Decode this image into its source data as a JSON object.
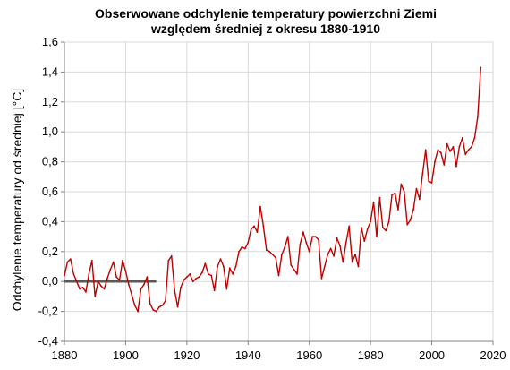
{
  "chart_data": {
    "type": "line",
    "title_lines": [
      "Obserwowane odchylenie temperatury powierzchni Ziemi",
      "względem średniej z okresu 1880-1910"
    ],
    "xlabel": "",
    "ylabel": "Odchylenie temperatury od średniej [°C]",
    "xlim": [
      1880,
      2020
    ],
    "ylim": [
      -0.4,
      1.6
    ],
    "x_ticks": [
      "1880",
      "1900",
      "1920",
      "1940",
      "1960",
      "1980",
      "2000",
      "2020"
    ],
    "y_ticks": [
      "1,6",
      "1,4",
      "1,2",
      "1,0",
      "0,8",
      "0,6",
      "0,4",
      "0,2",
      "0,0",
      "-0,2",
      "-0,4"
    ],
    "grid": true,
    "legend": "none",
    "colors": {
      "series": "#c00000",
      "baseline": "#595959",
      "grid": "#d9d9d9",
      "axis": "#808080"
    },
    "series": [
      {
        "x": [
          1880,
          1881,
          1882,
          1883,
          1884,
          1885,
          1886,
          1887,
          1888,
          1889,
          1890,
          1891,
          1892,
          1893,
          1894,
          1895,
          1896,
          1897,
          1898,
          1899,
          1900,
          1901,
          1902,
          1903,
          1904,
          1905,
          1906,
          1907,
          1908,
          1909,
          1910,
          1911,
          1912,
          1913,
          1914,
          1915,
          1916,
          1917,
          1918,
          1919,
          1920,
          1921,
          1922,
          1923,
          1924,
          1925,
          1926,
          1927,
          1928,
          1929,
          1930,
          1931,
          1932,
          1933,
          1934,
          1935,
          1936,
          1937,
          1938,
          1939,
          1940,
          1941,
          1942,
          1943,
          1944,
          1945,
          1946,
          1947,
          1948,
          1949,
          1950,
          1951,
          1952,
          1953,
          1954,
          1955,
          1956,
          1957,
          1958,
          1959,
          1960,
          1961,
          1962,
          1963,
          1964,
          1965,
          1966,
          1967,
          1968,
          1969,
          1970,
          1971,
          1972,
          1973,
          1974,
          1975,
          1976,
          1977,
          1978,
          1979,
          1980,
          1981,
          1982,
          1983,
          1984,
          1985,
          1986,
          1987,
          1988,
          1989,
          1990,
          1991,
          1992,
          1993,
          1994,
          1995,
          1996,
          1997,
          1998,
          1999,
          2000,
          2001,
          2002,
          2003,
          2004,
          2005,
          2006,
          2007,
          2008,
          2009,
          2010,
          2011,
          2012,
          2013,
          2014,
          2015,
          2016
        ],
        "y": [
          0.04,
          0.13,
          0.15,
          0.05,
          0.0,
          -0.05,
          -0.04,
          -0.07,
          0.05,
          0.14,
          -0.1,
          0.0,
          -0.03,
          -0.05,
          0.02,
          0.08,
          0.13,
          0.03,
          0.01,
          0.14,
          0.07,
          -0.02,
          -0.09,
          -0.16,
          -0.2,
          -0.05,
          -0.02,
          0.03,
          -0.15,
          -0.19,
          -0.2,
          -0.17,
          -0.16,
          -0.13,
          0.14,
          0.17,
          -0.06,
          -0.17,
          -0.04,
          0.01,
          0.03,
          0.05,
          0.0,
          0.02,
          0.03,
          0.06,
          0.12,
          0.05,
          0.04,
          -0.06,
          0.1,
          0.15,
          0.1,
          -0.05,
          0.09,
          0.05,
          0.1,
          0.2,
          0.23,
          0.22,
          0.26,
          0.35,
          0.37,
          0.33,
          0.5,
          0.37,
          0.21,
          0.2,
          0.18,
          0.16,
          0.04,
          0.18,
          0.23,
          0.3,
          0.11,
          0.08,
          0.05,
          0.25,
          0.33,
          0.26,
          0.2,
          0.3,
          0.3,
          0.28,
          0.02,
          0.1,
          0.18,
          0.22,
          0.17,
          0.29,
          0.24,
          0.13,
          0.26,
          0.37,
          0.13,
          0.18,
          0.1,
          0.36,
          0.27,
          0.35,
          0.4,
          0.53,
          0.3,
          0.56,
          0.36,
          0.34,
          0.4,
          0.58,
          0.59,
          0.48,
          0.65,
          0.6,
          0.38,
          0.41,
          0.48,
          0.62,
          0.55,
          0.72,
          0.88,
          0.67,
          0.66,
          0.8,
          0.88,
          0.86,
          0.78,
          0.92,
          0.87,
          0.9,
          0.77,
          0.9,
          0.96,
          0.85,
          0.88,
          0.9,
          0.96,
          1.1,
          1.43
        ]
      }
    ],
    "baseline": {
      "x": [
        1880,
        1910
      ],
      "y": 0.0
    }
  }
}
